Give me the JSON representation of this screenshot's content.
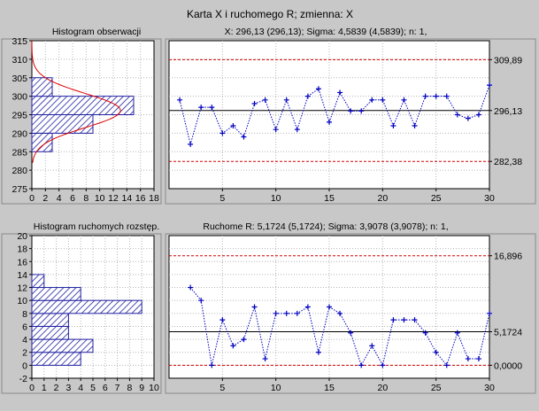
{
  "window": {
    "title": "Karta X i ruchomego R; zmienna:  X"
  },
  "chart_data": [
    {
      "id": "hist_x",
      "type": "bar",
      "orientation": "horizontal",
      "title": "Histogram obserwacji",
      "bins": [
        {
          "from": 275,
          "to": 280,
          "count": 0
        },
        {
          "from": 280,
          "to": 285,
          "count": 0
        },
        {
          "from": 285,
          "to": 290,
          "count": 3
        },
        {
          "from": 290,
          "to": 295,
          "count": 9
        },
        {
          "from": 295,
          "to": 300,
          "count": 15
        },
        {
          "from": 300,
          "to": 305,
          "count": 3
        },
        {
          "from": 305,
          "to": 310,
          "count": 0
        }
      ],
      "normal_curve": {
        "mean": 296.13,
        "sd": 4.5839
      },
      "ylim": [
        275,
        315
      ],
      "yticks": [
        "275",
        "280",
        "285",
        "290",
        "295",
        "300",
        "305",
        "310",
        "315"
      ],
      "xlim": [
        0,
        18
      ],
      "xticks": [
        "0",
        "2",
        "4",
        "6",
        "8",
        "10",
        "12",
        "14",
        "16",
        "18"
      ],
      "grid": true
    },
    {
      "id": "chart_x",
      "type": "line",
      "title": "X: 296,13 (296,13); Sigma: 4,5839 (4,5839); n: 1,",
      "x": [
        1,
        2,
        3,
        4,
        5,
        6,
        7,
        8,
        9,
        10,
        11,
        12,
        13,
        14,
        15,
        16,
        17,
        18,
        19,
        20,
        21,
        22,
        23,
        24,
        25,
        26,
        27,
        28,
        29,
        30
      ],
      "values": [
        299,
        287,
        297,
        297,
        290,
        292,
        289,
        298,
        299,
        291,
        299,
        291,
        300,
        302,
        293,
        301,
        296,
        296,
        299,
        299,
        292,
        299,
        292,
        300,
        300,
        300,
        295,
        294,
        295,
        303
      ],
      "ylim": [
        275,
        315
      ],
      "xlim": [
        0,
        30
      ],
      "xticks": [
        "5",
        "10",
        "15",
        "20",
        "25",
        "30"
      ],
      "grid": true,
      "control_limits": {
        "ucl": 309.89,
        "center": 296.13,
        "lcl": 282.38
      },
      "limit_labels": {
        "ucl": "309,89",
        "center": "296,13",
        "lcl": "282,38"
      }
    },
    {
      "id": "hist_r",
      "type": "bar",
      "orientation": "horizontal",
      "title": "Histogram ruchomych rozstęp.",
      "bins": [
        {
          "from": 0,
          "to": 2,
          "count": 4
        },
        {
          "from": 2,
          "to": 4,
          "count": 5
        },
        {
          "from": 4,
          "to": 6,
          "count": 3
        },
        {
          "from": 6,
          "to": 8,
          "count": 3
        },
        {
          "from": 8,
          "to": 10,
          "count": 9
        },
        {
          "from": 10,
          "to": 12,
          "count": 4
        },
        {
          "from": 12,
          "to": 14,
          "count": 1
        }
      ],
      "ylim": [
        -2,
        20
      ],
      "yticks": [
        "-2",
        "0",
        "2",
        "4",
        "6",
        "8",
        "10",
        "12",
        "14",
        "16",
        "18",
        "20"
      ],
      "xlim": [
        0,
        10
      ],
      "xticks": [
        "0",
        "1",
        "2",
        "3",
        "4",
        "5",
        "6",
        "7",
        "8",
        "9",
        "10"
      ],
      "grid": true
    },
    {
      "id": "chart_r",
      "type": "line",
      "title": "Ruchome R: 5,1724 (5,1724); Sigma: 3,9078 (3,9078); n: 1,",
      "x": [
        2,
        3,
        4,
        5,
        6,
        7,
        8,
        9,
        10,
        11,
        12,
        13,
        14,
        15,
        16,
        17,
        18,
        19,
        20,
        21,
        22,
        23,
        24,
        25,
        26,
        27,
        28,
        29,
        30
      ],
      "values": [
        12,
        10,
        0,
        7,
        3,
        4,
        9,
        1,
        8,
        8,
        8,
        9,
        2,
        9,
        8,
        5,
        0,
        3,
        0,
        7,
        7,
        7,
        5,
        2,
        0,
        5,
        1,
        1,
        8
      ],
      "ylim": [
        -2,
        20
      ],
      "xlim": [
        0,
        30
      ],
      "xticks": [
        "5",
        "10",
        "15",
        "20",
        "25",
        "30"
      ],
      "grid": true,
      "control_limits": {
        "ucl": 16.896,
        "center": 5.1724,
        "lcl": 0.0
      },
      "limit_labels": {
        "ucl": "16,896",
        "center": "5,1724",
        "lcl": "0,0000"
      }
    }
  ],
  "colors": {
    "background": "#c8c8c8",
    "plot_bg": "#ffffff",
    "grid": "#b4b4b4",
    "bar_hatch": "#2020a0",
    "bar_fill": "#ffffff",
    "series": "#0000c0",
    "limit_dashed": "#d00000",
    "center_line": "#000000",
    "normal_curve": "#e00000"
  }
}
